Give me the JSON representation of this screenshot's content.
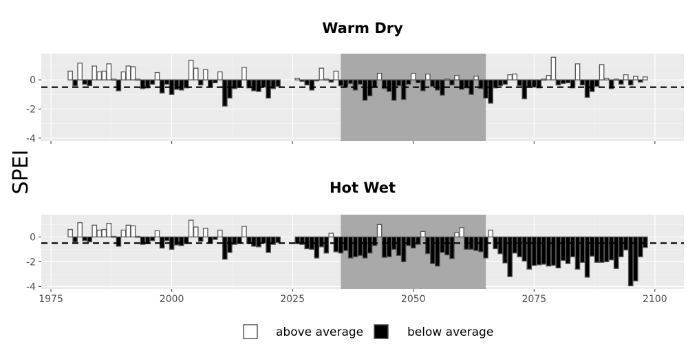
{
  "chart_data": {
    "type": "bar",
    "ylabel": "SPEI",
    "xlabel": "",
    "xlim": [
      1973,
      2106
    ],
    "ylim": [
      -4.2,
      1.8
    ],
    "x_ticks": [
      1975,
      2000,
      2025,
      2050,
      2075,
      2100
    ],
    "y_ticks": [
      -4,
      -2,
      0
    ],
    "reference_line": -0.5,
    "shaded_period": [
      2035,
      2065
    ],
    "legend": {
      "placement": "bottom",
      "above_label": "above average",
      "below_label": "below average"
    },
    "colors": {
      "above": "#ffffff",
      "below": "#000000",
      "bar_outline": "#555555",
      "shade": "#a9a9a9",
      "panel": "#ebebeb"
    },
    "panels": [
      {
        "title": "Warm Dry",
        "x_ticks_labeled": false,
        "series": [
          {
            "start_year": 1979,
            "values": [
              0.6,
              -0.4,
              1.15,
              -0.3,
              -0.4,
              0.95,
              0.55,
              0.6,
              1.1,
              0.05,
              -0.75,
              0.55,
              0.95,
              0.9,
              0.05,
              -0.6,
              -0.55,
              -0.3,
              0.5,
              -0.9,
              -0.3,
              -1.0,
              -0.65,
              -0.7,
              -0.55,
              1.35,
              0.8,
              -0.35,
              0.7,
              -0.5,
              -0.2,
              0.55,
              -1.8,
              -1.25,
              -0.6,
              -0.5,
              0.85,
              -0.55,
              -0.75,
              -0.8,
              -0.5,
              -1.25,
              -0.6,
              -0.45
            ]
          },
          {
            "start_year": 2026,
            "values": [
              0.1,
              -0.1,
              -0.35,
              -0.7,
              -0.05,
              0.8,
              0.05,
              -0.15,
              0.6,
              -0.4,
              -0.5,
              -0.25,
              -0.7,
              -0.3,
              -1.4,
              -1.1,
              -0.5,
              0.45,
              -0.6,
              -0.8,
              -1.4,
              -0.4,
              -1.35,
              -0.3,
              0.45,
              -0.2,
              -0.75,
              0.4,
              -0.45,
              -0.7,
              -1.05,
              0.05,
              -0.35,
              0.3,
              -0.65,
              -0.55,
              -1.0,
              0.25,
              -0.6,
              -1.25,
              -1.6,
              -0.55,
              -0.4,
              -0.3,
              0.35,
              0.4,
              -0.4,
              -1.3,
              -0.5,
              -0.5,
              -0.55,
              0.05,
              0.3,
              1.55,
              -0.35,
              -0.25,
              -0.2,
              -0.55,
              1.1,
              -0.35,
              -1.2,
              -0.8,
              -0.45,
              1.05,
              0.1,
              -0.6,
              0.05,
              -0.3,
              0.35,
              -0.35,
              0.25,
              -0.15,
              0.2
            ]
          }
        ]
      },
      {
        "title": "Hot Wet",
        "x_ticks_labeled": true,
        "series": [
          {
            "start_year": 1979,
            "values": [
              0.6,
              -0.4,
              1.15,
              -0.3,
              -0.4,
              0.95,
              0.55,
              0.6,
              1.1,
              0.05,
              -0.75,
              0.55,
              0.95,
              0.9,
              0.05,
              -0.6,
              -0.55,
              -0.3,
              0.5,
              -0.9,
              -0.3,
              -1.0,
              -0.65,
              -0.7,
              -0.55,
              1.35,
              0.8,
              -0.35,
              0.7,
              -0.5,
              -0.2,
              0.55,
              -1.8,
              -1.25,
              -0.6,
              -0.5,
              0.85,
              -0.55,
              -0.75,
              -0.8,
              -0.5,
              -1.25,
              -0.6,
              -0.45
            ]
          },
          {
            "start_year": 2026,
            "values": [
              -0.55,
              -0.6,
              -0.95,
              -1.0,
              -1.7,
              -0.8,
              -1.3,
              0.3,
              -1.2,
              -1.3,
              -1.1,
              -1.7,
              -1.6,
              -1.5,
              -1.7,
              -1.3,
              -0.7,
              1.0,
              -1.65,
              -1.6,
              -1.0,
              -1.5,
              -2.0,
              -0.7,
              -0.9,
              -0.6,
              0.45,
              -1.35,
              -2.15,
              -2.35,
              -1.25,
              -1.45,
              -1.75,
              0.35,
              0.75,
              -1.0,
              -1.0,
              -1.1,
              -1.2,
              -1.7,
              0.55,
              -0.95,
              -1.35,
              -2.1,
              -3.2,
              -1.3,
              -1.6,
              -1.95,
              -2.6,
              -2.3,
              -2.25,
              -2.2,
              -2.35,
              -2.3,
              -2.5,
              -1.9,
              -2.15,
              -1.6,
              -2.6,
              -2.05,
              -3.25,
              -1.55,
              -2.05,
              -2.05,
              -2.0,
              -1.85,
              -2.55,
              -1.6,
              -1.05,
              -3.95,
              -3.55,
              -1.6,
              -0.85
            ]
          }
        ]
      }
    ]
  }
}
